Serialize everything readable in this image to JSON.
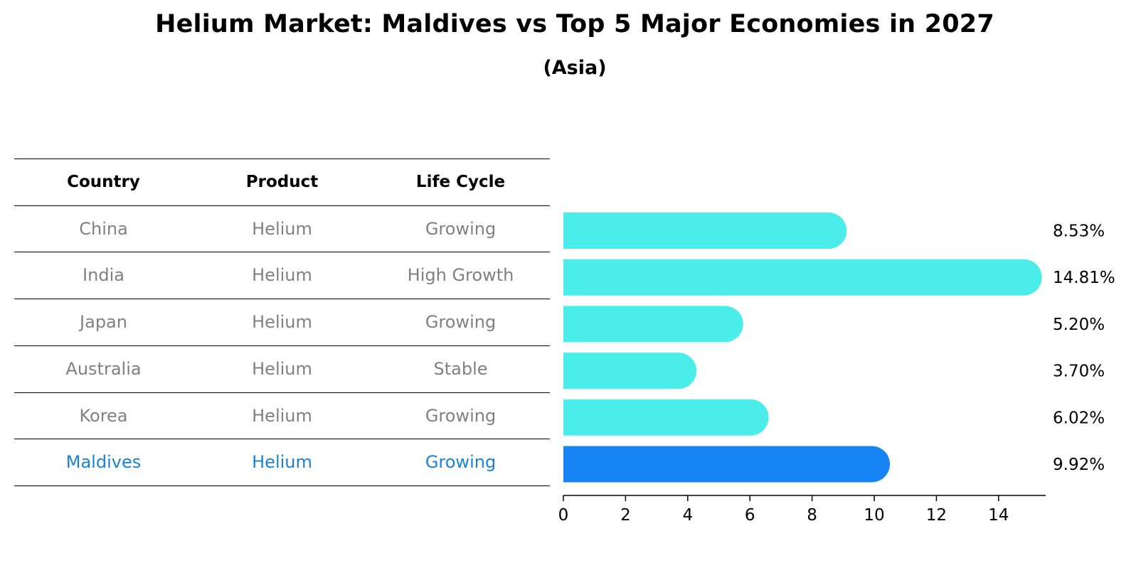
{
  "chart_data": {
    "type": "bar",
    "orientation": "horizontal",
    "title": "Helium Market: Maldives vs Top 5 Major Economies in 2027",
    "subtitle": "(Asia)",
    "categories": [
      "China",
      "India",
      "Japan",
      "Australia",
      "Korea",
      "Maldives"
    ],
    "values": [
      8.53,
      14.81,
      5.2,
      3.7,
      6.02,
      9.92
    ],
    "value_labels": [
      "8.53%",
      "14.81%",
      "5.20%",
      "3.70%",
      "6.02%",
      "9.92%"
    ],
    "highlight": "Maldives",
    "xlim": [
      0,
      15.5
    ],
    "xticks": [
      0,
      2,
      4,
      6,
      8,
      10,
      12,
      14
    ],
    "xtick_labels": [
      "0",
      "2",
      "4",
      "6",
      "8",
      "10",
      "12",
      "14"
    ],
    "grid": false,
    "colors": {
      "bar": "#4bedeb",
      "highlight_bar": "#1684f5",
      "axis": "#000000"
    }
  },
  "table": {
    "headers": [
      "Country",
      "Product",
      "Life Cycle"
    ],
    "rows": [
      [
        "China",
        "Helium",
        "Growing"
      ],
      [
        "India",
        "Helium",
        "High Growth"
      ],
      [
        "Japan",
        "Helium",
        "Growing"
      ],
      [
        "Australia",
        "Helium",
        "Stable"
      ],
      [
        "Korea",
        "Helium",
        "Growing"
      ],
      [
        "Maldives",
        "Helium",
        "Growing"
      ]
    ],
    "colors": {
      "text": "#808080",
      "highlight_text": "#1a82d6"
    }
  }
}
